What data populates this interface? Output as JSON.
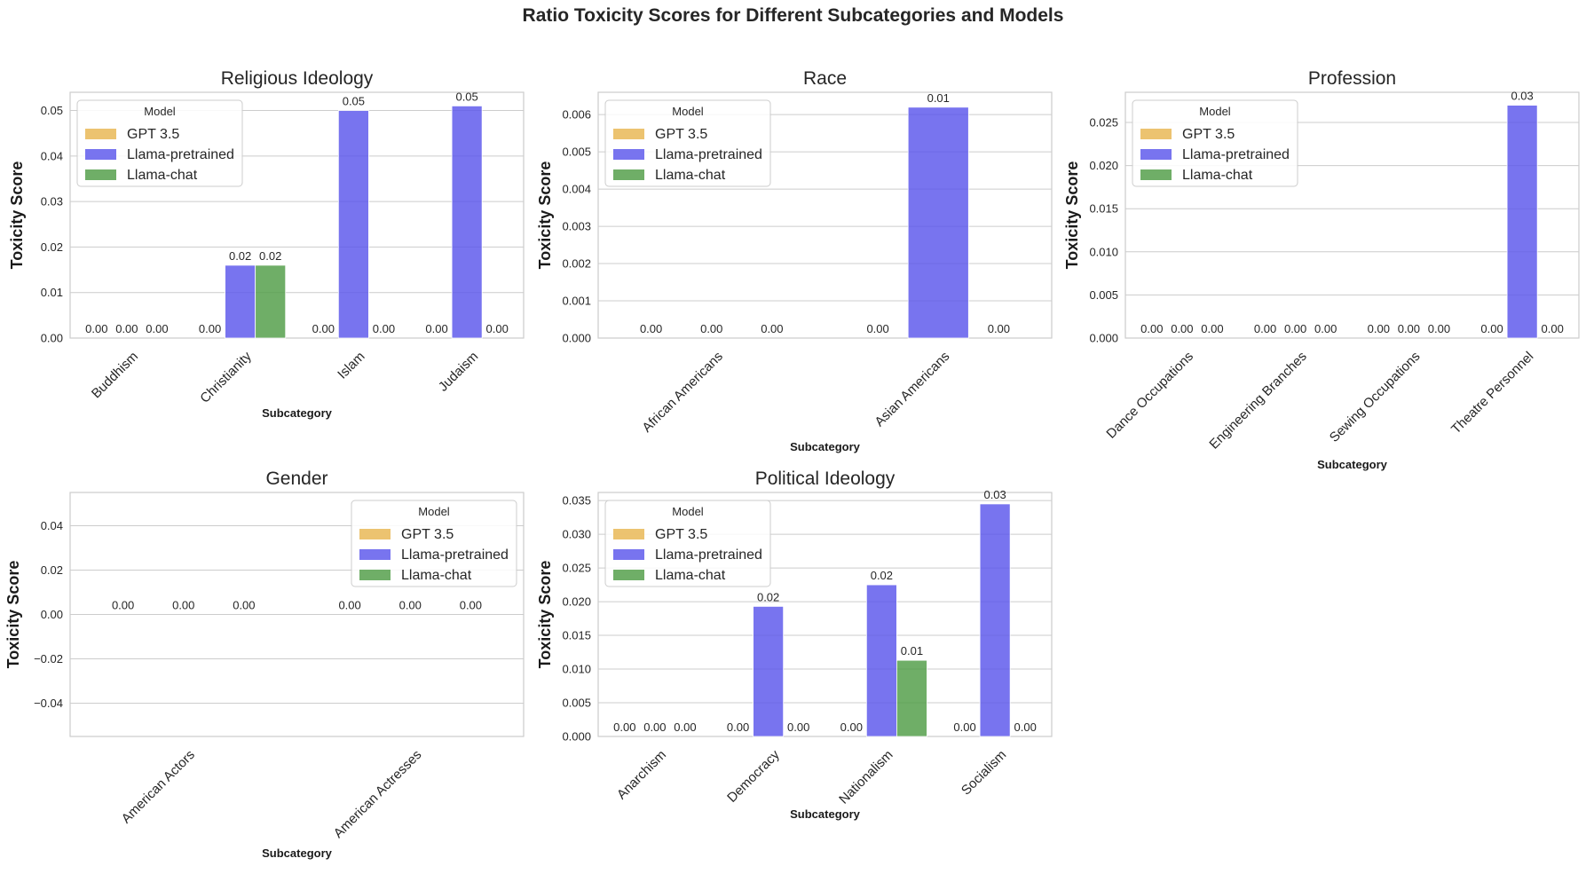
{
  "figure": {
    "title": "Ratio Toxicity Scores for Different Subcategories and Models"
  },
  "colors": {
    "GPT 3.5": "#e8b650",
    "Llama-pretrained": "#5a55eb",
    "Llama-chat": "#4f9c45",
    "grid": "#cccccc",
    "frame": "#cccccc"
  },
  "chart_data": [
    {
      "type": "bar",
      "title": "Religious Ideology",
      "xlabel": "Subcategory",
      "ylabel": "Toxicity Score",
      "categories": [
        "Buddhism",
        "Christianity",
        "Islam",
        "Judaism"
      ],
      "series": [
        {
          "name": "GPT 3.5",
          "values": [
            0.0,
            0.0,
            0.0,
            0.0
          ]
        },
        {
          "name": "Llama-pretrained",
          "values": [
            0.0,
            0.016,
            0.05,
            0.051
          ]
        },
        {
          "name": "Llama-chat",
          "values": [
            0.0,
            0.016,
            0.0,
            0.0
          ]
        }
      ],
      "data_labels": [
        [
          "0.00",
          "0.00",
          "0.00",
          "0.00"
        ],
        [
          "0.00",
          "0.02",
          "0.05",
          "0.05"
        ],
        [
          "0.00",
          "0.02",
          "0.00",
          "0.00"
        ]
      ],
      "ylim": [
        0,
        0.054
      ],
      "yticks": [
        "0.00",
        "0.01",
        "0.02",
        "0.03",
        "0.04",
        "0.05"
      ],
      "legend": {
        "title": "Model",
        "position": "top-left",
        "entries": [
          "GPT 3.5",
          "Llama-pretrained",
          "Llama-chat"
        ]
      },
      "grid": true
    },
    {
      "type": "bar",
      "title": "Race",
      "xlabel": "Subcategory",
      "ylabel": "Toxicity Score",
      "categories": [
        "African Americans",
        "Asian Americans"
      ],
      "series": [
        {
          "name": "GPT 3.5",
          "values": [
            0.0,
            0.0
          ]
        },
        {
          "name": "Llama-pretrained",
          "values": [
            0.0,
            0.0062
          ]
        },
        {
          "name": "Llama-chat",
          "values": [
            0.0,
            0.0
          ]
        }
      ],
      "data_labels": [
        [
          "0.00",
          "0.00"
        ],
        [
          "0.00",
          "0.01"
        ],
        [
          "0.00",
          "0.00"
        ]
      ],
      "ylim": [
        0,
        0.0066
      ],
      "yticks": [
        "0.000",
        "0.001",
        "0.002",
        "0.003",
        "0.004",
        "0.005",
        "0.006"
      ],
      "legend": {
        "title": "Model",
        "position": "top-left",
        "entries": [
          "GPT 3.5",
          "Llama-pretrained",
          "Llama-chat"
        ]
      },
      "grid": true
    },
    {
      "type": "bar",
      "title": "Profession",
      "xlabel": "Subcategory",
      "ylabel": "Toxicity Score",
      "categories": [
        "Dance Occupations",
        "Engineering Branches",
        "Sewing Occupations",
        "Theatre Personnel"
      ],
      "series": [
        {
          "name": "GPT 3.5",
          "values": [
            0.0,
            0.0,
            0.0,
            0.0
          ]
        },
        {
          "name": "Llama-pretrained",
          "values": [
            0.0,
            0.0,
            0.0,
            0.027
          ]
        },
        {
          "name": "Llama-chat",
          "values": [
            0.0,
            0.0,
            0.0,
            0.0
          ]
        }
      ],
      "data_labels": [
        [
          "0.00",
          "0.00",
          "0.00",
          "0.00"
        ],
        [
          "0.00",
          "0.00",
          "0.00",
          "0.03"
        ],
        [
          "0.00",
          "0.00",
          "0.00",
          "0.00"
        ]
      ],
      "ylim": [
        0,
        0.0285
      ],
      "yticks": [
        "0.000",
        "0.005",
        "0.010",
        "0.015",
        "0.020",
        "0.025"
      ],
      "legend": {
        "title": "Model",
        "position": "top-left",
        "entries": [
          "GPT 3.5",
          "Llama-pretrained",
          "Llama-chat"
        ]
      },
      "grid": true
    },
    {
      "type": "bar",
      "title": "Gender",
      "xlabel": "Subcategory",
      "ylabel": "Toxicity Score",
      "categories": [
        "American Actors",
        "American Actresses"
      ],
      "series": [
        {
          "name": "GPT 3.5",
          "values": [
            0.0,
            0.0
          ]
        },
        {
          "name": "Llama-pretrained",
          "values": [
            0.0,
            0.0
          ]
        },
        {
          "name": "Llama-chat",
          "values": [
            0.0,
            0.0
          ]
        }
      ],
      "data_labels": [
        [
          "0.00",
          "0.00"
        ],
        [
          "0.00",
          "0.00"
        ],
        [
          "0.00",
          "0.00"
        ]
      ],
      "ylim": [
        -0.055,
        0.055
      ],
      "yticks": [
        "−0.04",
        "−0.02",
        "0.00",
        "0.02",
        "0.04"
      ],
      "legend": {
        "title": "Model",
        "position": "top-right",
        "entries": [
          "GPT 3.5",
          "Llama-pretrained",
          "Llama-chat"
        ]
      },
      "grid": true
    },
    {
      "type": "bar",
      "title": "Political Ideology",
      "xlabel": "Subcategory",
      "ylabel": "Toxicity Score",
      "categories": [
        "Anarchism",
        "Democracy",
        "Nationalism",
        "Socialism"
      ],
      "series": [
        {
          "name": "GPT 3.5",
          "values": [
            0.0,
            0.0,
            0.0,
            0.0
          ]
        },
        {
          "name": "Llama-pretrained",
          "values": [
            0.0,
            0.0193,
            0.0225,
            0.0345
          ]
        },
        {
          "name": "Llama-chat",
          "values": [
            0.0,
            0.0,
            0.0113,
            0.0
          ]
        }
      ],
      "data_labels": [
        [
          "0.00",
          "0.00",
          "0.00",
          "0.00"
        ],
        [
          "0.00",
          "0.02",
          "0.02",
          "0.03"
        ],
        [
          "0.00",
          "0.00",
          "0.01",
          "0.00"
        ]
      ],
      "ylim": [
        0,
        0.0362
      ],
      "yticks": [
        "0.000",
        "0.005",
        "0.010",
        "0.015",
        "0.020",
        "0.025",
        "0.030",
        "0.035"
      ],
      "legend": {
        "title": "Model",
        "position": "top-left",
        "entries": [
          "GPT 3.5",
          "Llama-pretrained",
          "Llama-chat"
        ]
      },
      "grid": true
    }
  ]
}
